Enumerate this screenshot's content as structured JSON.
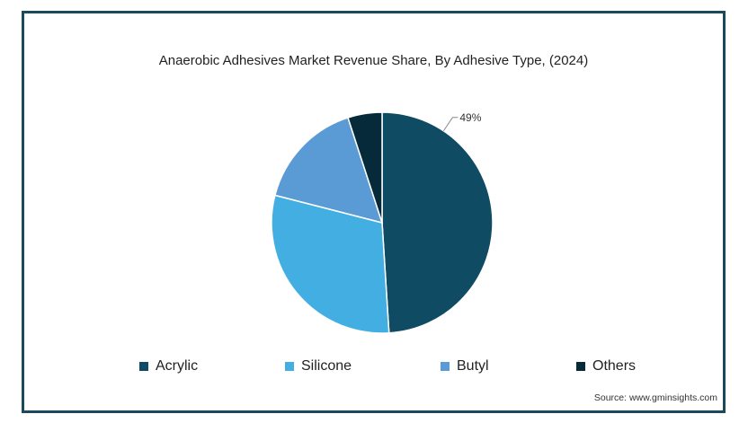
{
  "chart_data": {
    "type": "pie",
    "title": "Anaerobic Adhesives Market Revenue Share, By Adhesive Type, (2024)",
    "slices": [
      {
        "name": "Acrylic",
        "value": 49,
        "color": "#0f4c63"
      },
      {
        "name": "Silicone",
        "value": 30,
        "color": "#43aee1"
      },
      {
        "name": "Butyl",
        "value": 16,
        "color": "#5a9bd5"
      },
      {
        "name": "Others",
        "value": 5,
        "color": "#072a3a"
      }
    ],
    "data_labels": [
      {
        "series": "Acrylic",
        "text": "49%"
      }
    ],
    "legend_position": "bottom"
  },
  "source": "Source: www.gminsights.com"
}
